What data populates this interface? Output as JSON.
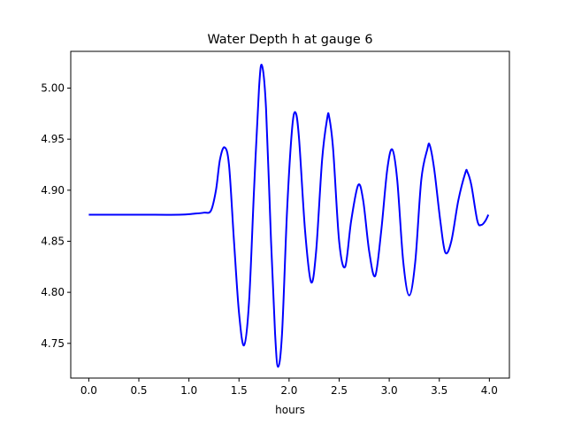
{
  "chart_data": {
    "type": "line",
    "title": "Water Depth h at gauge 6",
    "xlabel": "hours",
    "ylabel": "",
    "xlim": [
      -0.18,
      4.2
    ],
    "ylim": [
      4.716,
      5.036
    ],
    "xticks": [
      0.0,
      0.5,
      1.0,
      1.5,
      2.0,
      2.5,
      3.0,
      3.5,
      4.0
    ],
    "xtick_labels": [
      "0.0",
      "0.5",
      "1.0",
      "1.5",
      "2.0",
      "2.5",
      "3.0",
      "3.5",
      "4.0"
    ],
    "yticks": [
      4.75,
      4.8,
      4.85,
      4.9,
      4.95,
      5.0
    ],
    "ytick_labels": [
      "4.75",
      "4.80",
      "4.85",
      "4.90",
      "4.95",
      "5.00"
    ],
    "grid": false,
    "series": [
      {
        "color": "#0000ff",
        "points": [
          [
            0.0,
            4.876
          ],
          [
            0.5,
            4.876
          ],
          [
            0.9,
            4.876
          ],
          [
            1.05,
            4.877
          ],
          [
            1.15,
            4.878
          ],
          [
            1.22,
            4.88
          ],
          [
            1.27,
            4.9
          ],
          [
            1.31,
            4.93
          ],
          [
            1.355,
            4.942
          ],
          [
            1.4,
            4.925
          ],
          [
            1.45,
            4.85
          ],
          [
            1.5,
            4.78
          ],
          [
            1.55,
            4.748
          ],
          [
            1.6,
            4.79
          ],
          [
            1.65,
            4.9
          ],
          [
            1.7,
            5.0
          ],
          [
            1.73,
            5.022
          ],
          [
            1.77,
            4.98
          ],
          [
            1.82,
            4.85
          ],
          [
            1.86,
            4.76
          ],
          [
            1.89,
            4.727
          ],
          [
            1.93,
            4.76
          ],
          [
            1.98,
            4.88
          ],
          [
            2.03,
            4.96
          ],
          [
            2.065,
            4.976
          ],
          [
            2.1,
            4.95
          ],
          [
            2.16,
            4.86
          ],
          [
            2.22,
            4.81
          ],
          [
            2.27,
            4.84
          ],
          [
            2.33,
            4.93
          ],
          [
            2.38,
            4.97
          ],
          [
            2.4,
            4.972
          ],
          [
            2.44,
            4.94
          ],
          [
            2.5,
            4.85
          ],
          [
            2.56,
            4.825
          ],
          [
            2.62,
            4.87
          ],
          [
            2.69,
            4.905
          ],
          [
            2.74,
            4.89
          ],
          [
            2.8,
            4.84
          ],
          [
            2.86,
            4.816
          ],
          [
            2.92,
            4.86
          ],
          [
            2.98,
            4.92
          ],
          [
            3.03,
            4.94
          ],
          [
            3.08,
            4.91
          ],
          [
            3.14,
            4.83
          ],
          [
            3.2,
            4.797
          ],
          [
            3.26,
            4.83
          ],
          [
            3.32,
            4.91
          ],
          [
            3.38,
            4.94
          ],
          [
            3.405,
            4.944
          ],
          [
            3.45,
            4.92
          ],
          [
            3.51,
            4.87
          ],
          [
            3.56,
            4.839
          ],
          [
            3.62,
            4.85
          ],
          [
            3.69,
            4.89
          ],
          [
            3.76,
            4.917
          ],
          [
            3.78,
            4.918
          ],
          [
            3.82,
            4.905
          ],
          [
            3.88,
            4.87
          ],
          [
            3.92,
            4.866
          ],
          [
            3.96,
            4.87
          ],
          [
            3.99,
            4.876
          ]
        ]
      }
    ]
  }
}
